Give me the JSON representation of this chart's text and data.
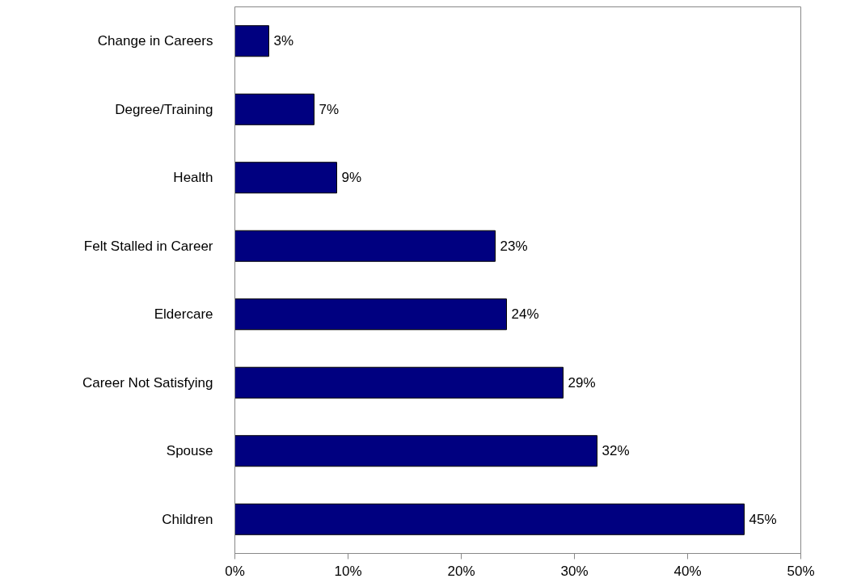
{
  "chart_data": {
    "type": "bar",
    "orientation": "horizontal",
    "categories": [
      "Change in Careers",
      "Degree/Training",
      "Health",
      "Felt Stalled in Career",
      "Eldercare",
      "Career Not Satisfying",
      "Spouse",
      "Children"
    ],
    "values": [
      3,
      7,
      9,
      23,
      24,
      29,
      32,
      45
    ],
    "value_labels": [
      "3%",
      "7%",
      "9%",
      "23%",
      "24%",
      "29%",
      "32%",
      "45%"
    ],
    "color": "#000080",
    "xlim": [
      0,
      50
    ],
    "xticks": [
      {
        "value": 0,
        "label": "0%"
      },
      {
        "value": 10,
        "label": "10%"
      },
      {
        "value": 20,
        "label": "20%"
      },
      {
        "value": 30,
        "label": "30%"
      },
      {
        "value": 40,
        "label": "40%"
      },
      {
        "value": 50,
        "label": "50%"
      }
    ],
    "grid": false
  }
}
